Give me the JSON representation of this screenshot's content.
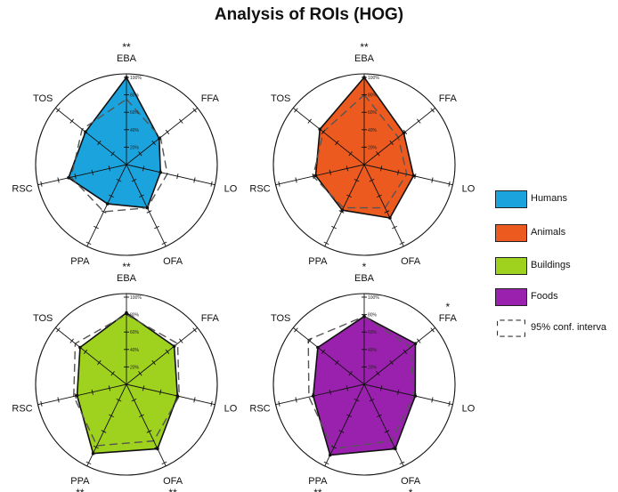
{
  "title": "Analysis of ROIs (HOG)",
  "legend": {
    "items": [
      {
        "label": "Humans",
        "color": "#1ba3dd"
      },
      {
        "label": "Animals",
        "color": "#ed5a1f"
      },
      {
        "label": "Buildings",
        "color": "#9fd11f"
      },
      {
        "label": "Foods",
        "color": "#9a21ad"
      }
    ],
    "ci_label": "95% conf. interva"
  },
  "chart_data": [
    {
      "type": "radar",
      "series_name": "Humans",
      "color": "#1ba3dd",
      "axes": [
        "EBA",
        "FFA",
        "LO",
        "OFA",
        "PPA",
        "RSC",
        "TOS"
      ],
      "values": [
        100,
        48,
        40,
        55,
        50,
        68,
        60
      ],
      "ci_95": [
        75,
        50,
        48,
        55,
        60,
        65,
        65
      ],
      "significance": [
        "**",
        "",
        "",
        "",
        "",
        "",
        ""
      ],
      "tick_labels": [
        "20%",
        "40%",
        "60%",
        "80%",
        "100%"
      ],
      "range": [
        0,
        100
      ]
    },
    {
      "type": "radar",
      "series_name": "Animals",
      "color": "#ed5a1f",
      "axes": [
        "EBA",
        "FFA",
        "LO",
        "OFA",
        "PPA",
        "RSC",
        "TOS"
      ],
      "values": [
        100,
        58,
        58,
        68,
        58,
        57,
        65
      ],
      "ci_95": [
        80,
        50,
        50,
        55,
        55,
        60,
        60
      ],
      "significance": [
        "**",
        "",
        "",
        "",
        "",
        "",
        ""
      ],
      "tick_labels": [
        "20%",
        "40%",
        "60%",
        "80%",
        "100%"
      ],
      "range": [
        0,
        100
      ]
    },
    {
      "type": "radar",
      "series_name": "Buildings",
      "color": "#9fd11f",
      "axes": [
        "EBA",
        "FFA",
        "LO",
        "OFA",
        "PPA",
        "RSC",
        "TOS"
      ],
      "values": [
        82,
        70,
        60,
        82,
        88,
        58,
        68
      ],
      "ci_95": [
        80,
        75,
        62,
        72,
        78,
        62,
        75
      ],
      "significance": [
        "**",
        "",
        "",
        "**",
        "**",
        "",
        ""
      ],
      "tick_labels": [
        "20%",
        "40%",
        "60%",
        "80%",
        "100%"
      ],
      "range": [
        0,
        100
      ]
    },
    {
      "type": "radar",
      "series_name": "Foods",
      "color": "#9a21ad",
      "axes": [
        "EBA",
        "FFA",
        "LO",
        "OFA",
        "PPA",
        "RSC",
        "TOS"
      ],
      "values": [
        78,
        75,
        60,
        82,
        90,
        60,
        68
      ],
      "ci_95": [
        78,
        68,
        58,
        72,
        82,
        65,
        82
      ],
      "significance": [
        "*",
        "*",
        "",
        "*",
        "**",
        "",
        ""
      ],
      "tick_labels": [
        "20%",
        "40%",
        "60%",
        "80%",
        "100%"
      ],
      "range": [
        0,
        100
      ]
    }
  ]
}
